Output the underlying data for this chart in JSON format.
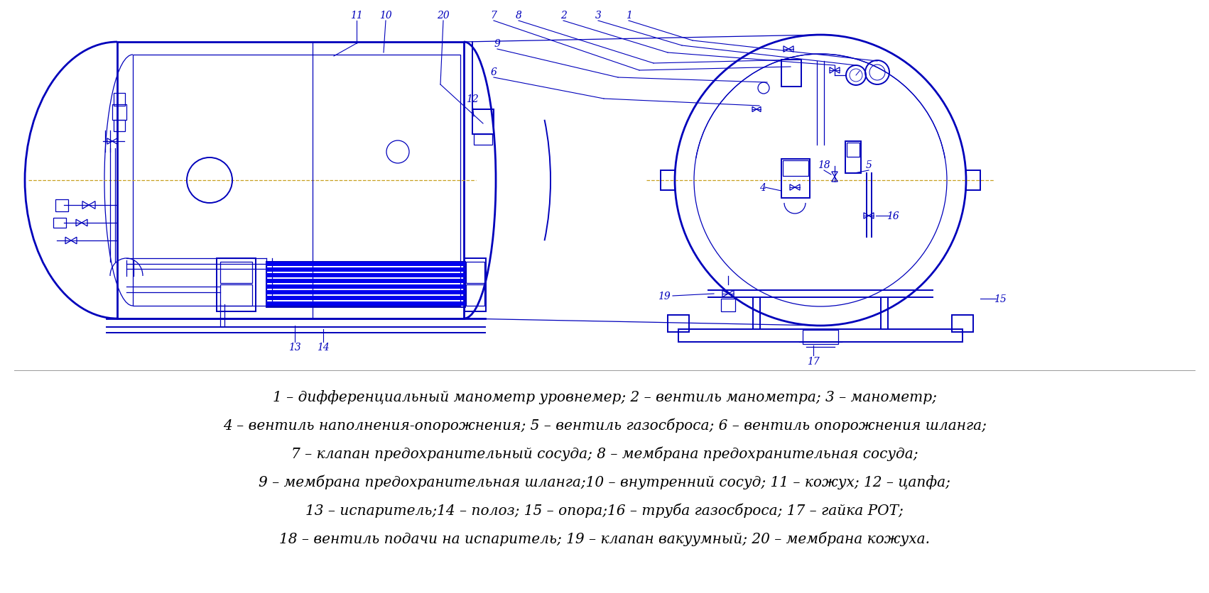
{
  "bg_color": "#ffffff",
  "dc": "#0000BB",
  "blue_fill": "#0000EE",
  "orange": "#C8A020",
  "text_color": "#000000",
  "lw_thick": 2.0,
  "lw_main": 1.4,
  "lw_thin": 0.9,
  "lw_leader": 0.8,
  "figsize": [
    17.02,
    8.37
  ],
  "dpi": 100,
  "legend_lines": [
    "1 – дифференциальный манометр уровнемер; 2 – вентиль манометра; 3 – манометр;",
    "4 – вентиль наполнения-опорожнения; 5 – вентиль газосброса; 6 – вентиль опорожнения шланга;",
    "7 – клапан предохранительный сосуда; 8 – мембрана предохранительная сосуда;",
    "9 – мембрана предохранительная шланга;10 – внутренний сосуд; 11 – кожух; 12 – цапфа;",
    "13 – испаритель;14 – полоз; 15 – опора;16 – труба газосброса; 17 – гайка РОТ;",
    "18 – вентиль подачи на испаритель; 19 – клапан вакуумный; 20 – мембрана кожуха."
  ]
}
